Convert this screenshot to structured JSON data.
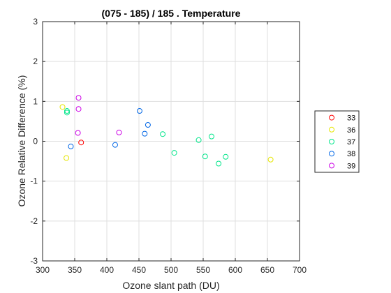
{
  "chart_data": {
    "type": "scatter",
    "title": "(075 - 185) / 185 . Temperature",
    "xlabel": "Ozone slant path (DU)",
    "ylabel": "Ozone Relative Difference (%)",
    "xlim": [
      300,
      700
    ],
    "ylim": [
      -3,
      3
    ],
    "xticks": [
      300,
      350,
      400,
      450,
      500,
      550,
      600,
      650,
      700
    ],
    "yticks": [
      -3,
      -2,
      -1,
      0,
      1,
      2,
      3
    ],
    "grid": true,
    "legend_position": "outside-right",
    "series": [
      {
        "name": "33",
        "color": "#ff0000",
        "marker": "circle",
        "points": [
          [
            360,
            -0.03
          ]
        ]
      },
      {
        "name": "36",
        "color": "#e6e600",
        "marker": "circle",
        "points": [
          [
            331,
            0.86
          ],
          [
            337,
            -0.42
          ],
          [
            655,
            -0.46
          ]
        ]
      },
      {
        "name": "37",
        "color": "#00e68a",
        "marker": "circle",
        "points": [
          [
            338,
            0.76
          ],
          [
            338,
            0.72
          ],
          [
            487,
            0.18
          ],
          [
            505,
            -0.29
          ],
          [
            543,
            0.03
          ],
          [
            553,
            -0.38
          ],
          [
            563,
            0.12
          ],
          [
            574,
            -0.56
          ],
          [
            585,
            -0.39
          ]
        ]
      },
      {
        "name": "38",
        "color": "#0066e6",
        "marker": "circle",
        "points": [
          [
            344,
            -0.13
          ],
          [
            413,
            -0.09
          ],
          [
            451,
            0.76
          ],
          [
            459,
            0.19
          ],
          [
            464,
            0.41
          ]
        ]
      },
      {
        "name": "39",
        "color": "#cc00e6",
        "marker": "circle",
        "points": [
          [
            356,
            1.09
          ],
          [
            356,
            0.81
          ],
          [
            355,
            0.21
          ],
          [
            419,
            0.22
          ]
        ]
      }
    ]
  }
}
